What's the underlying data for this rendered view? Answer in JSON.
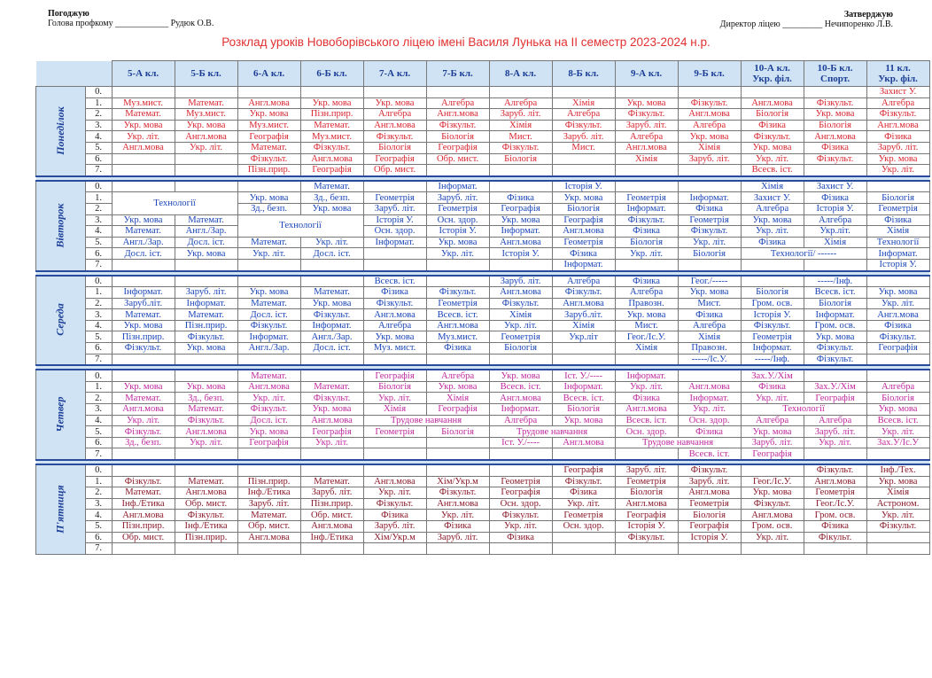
{
  "header": {
    "left_label": "Погоджую",
    "left_line": "Голова профкому ____________  Рудюк О.В.",
    "right_label": "Затверджую",
    "right_line": "Директор ліцею _________  Нечипоренко Л.В."
  },
  "title": "Розклад уроків Новоборівського ліцею імені Василя Лунька на ІІ семестр 2023-2024 н.р.",
  "classes": [
    "5-А кл.",
    "5-Б кл.",
    "6-А кл.",
    "6-Б кл.",
    "7-А кл.",
    "7-Б кл.",
    "8-А кл.",
    "8-Б кл.",
    "9-А кл.",
    "9-Б кл.",
    "10-А кл. Укр. філ.",
    "10-Б кл. Спорт.",
    "11 кл. Укр. філ."
  ],
  "days": [
    {
      "name": "Понеділок",
      "color": "#d8262f",
      "rows": [
        {
          "n": "0.",
          "cells": [
            "",
            "",
            "",
            "",
            "",
            "",
            "",
            "",
            "",
            "",
            "",
            "",
            "Захист У."
          ]
        },
        {
          "n": "1.",
          "cells": [
            "Муз.мист.",
            "Математ.",
            "Англ.мова",
            "Укр. мова",
            "Укр. мова",
            "Алгебра",
            "Алгебра",
            "Хімія",
            "Укр. мова",
            "Фізкульт.",
            "Англ.мова",
            "Фізкульт.",
            "Алгебра"
          ]
        },
        {
          "n": "2.",
          "cells": [
            "Математ.",
            "Муз.мист.",
            "Укр. мова",
            "Пізн.прир.",
            "Алгебра",
            "Англ.мова",
            "Заруб. літ.",
            "Алгебра",
            "Фізкульт.",
            "Англ.мова",
            "Біологія",
            "Укр. мова",
            "Фізкульт."
          ]
        },
        {
          "n": "3.",
          "cells": [
            "Укр. мова",
            "Укр. мова",
            "Муз.мист.",
            "Математ.",
            "Англ.мова",
            "Фізкульт.",
            "Хімія",
            "Фізкульт.",
            "Заруб. літ.",
            "Алгебра",
            "Фізика",
            "Біологія",
            "Англ.мова"
          ]
        },
        {
          "n": "4.",
          "cells": [
            "Укр. літ.",
            "Англ.мова",
            "Географія",
            "Муз.мист.",
            "Фізкульт.",
            "Біологія",
            "Мист.",
            "Заруб. літ.",
            "Алгебра",
            "Укр. мова",
            "Фізкульт.",
            "Англ.мова",
            "Фізика"
          ]
        },
        {
          "n": "5.",
          "cells": [
            "Англ.мова",
            "Укр. літ.",
            "Математ.",
            "Фізкульт.",
            "Біологія",
            "Географія",
            "Фізкульт.",
            "Мист.",
            "Англ.мова",
            "Хімія",
            "Укр. мова",
            "Фізика",
            "Заруб. літ."
          ]
        },
        {
          "n": "6.",
          "cells": [
            "",
            "",
            "Фізкульт.",
            "Англ.мова",
            "Географія",
            "Обр. мист.",
            "Біологія",
            "",
            "Хімія",
            "Заруб. літ.",
            "Укр. літ.",
            "Фізкульт.",
            "Укр. мова"
          ]
        },
        {
          "n": "7.",
          "cells": [
            "",
            "",
            "Пізн.прир.",
            "Географія",
            "Обр. мист.",
            "",
            "",
            "",
            "",
            "",
            "Всесв. іст.",
            "",
            "Укр. літ."
          ]
        }
      ]
    },
    {
      "name": "Вівторок",
      "color": "#1a46b8",
      "rows": [
        {
          "n": "0.",
          "cells": [
            "",
            "",
            "",
            "Математ.",
            "",
            "Інформат.",
            "",
            "Історія У.",
            "",
            "",
            "Хімія",
            "Захист У.",
            ""
          ]
        },
        {
          "n": "1.",
          "cells": [
            "",
            "",
            "Укр. мова",
            "Зд., безп.",
            "Геометрія",
            "Заруб. літ.",
            "Фізика",
            "Укр. мова",
            "Геометрія",
            "Інформат.",
            "Захист У.",
            "Фізика",
            "Біологія"
          ]
        },
        {
          "n": "2.",
          "cells": [
            "",
            "",
            "Зд., безп.",
            "Укр. мова",
            "Заруб. літ.",
            "Геометрія",
            "Географія",
            "Біологія",
            "Інформат.",
            "Фізика",
            "Алгебра",
            "Історія У.",
            "Геометрія"
          ]
        },
        {
          "n": "3.",
          "cells": [
            "Укр. мова",
            "Математ.",
            "",
            "",
            "Історія У.",
            "Осн. здор.",
            "Укр. мова",
            "Географія",
            "Фізкульт.",
            "Геометрія",
            "Укр. мова",
            "Алгебра",
            "Фізика"
          ]
        },
        {
          "n": "4.",
          "cells": [
            "Математ.",
            "Англ./Зар.",
            "",
            "",
            "Осн. здор.",
            "Історія У.",
            "Інформат.",
            "Англ.мова",
            "Фізика",
            "Фізкульт.",
            "Укр. літ.",
            "Укр.літ.",
            "Хімія"
          ]
        },
        {
          "n": "5.",
          "cells": [
            "Англ./Зар.",
            "Досл. іст.",
            "Математ.",
            "Укр. літ.",
            "Інформат.",
            "Укр. мова",
            "Англ.мова",
            "Геометрія",
            "Біологія",
            "Укр. літ.",
            "Фізика",
            "Хімія",
            "Технології"
          ]
        },
        {
          "n": "6.",
          "cells": [
            "Досл. іст.",
            "Укр. мова",
            "Укр. літ.",
            "Досл. іст.",
            "",
            "Укр. літ.",
            "Історія У.",
            "Фізика",
            "Укр. літ.",
            "Біологія",
            "",
            "",
            "Інформат."
          ]
        },
        {
          "n": "7.",
          "cells": [
            "",
            "",
            "",
            "",
            "",
            "",
            "",
            "Інформат.",
            "",
            "",
            "",
            "",
            "Історія У."
          ]
        }
      ],
      "merges": [
        {
          "row": 1,
          "col": 0,
          "span": 2,
          "rows": 2,
          "text": "Технології"
        },
        {
          "row": 3,
          "col": 2,
          "span": 2,
          "rows": 2,
          "text": "Технології"
        },
        {
          "row": 6,
          "col": 10,
          "span": 2,
          "rows": 1,
          "text": "Технології/ ------"
        }
      ]
    },
    {
      "name": "Середа",
      "color": "#1a46b8",
      "rows": [
        {
          "n": "0.",
          "cells": [
            "",
            "",
            "",
            "",
            "Всесв. іст.",
            "",
            "Заруб. літ.",
            "Алгебра",
            "Фізика",
            "Геог./-----",
            "",
            "-----/Інф.",
            ""
          ]
        },
        {
          "n": "1.",
          "cells": [
            "Інформат.",
            "Заруб. літ.",
            "Укр. мова",
            "Математ.",
            "Фізика",
            "Фізкульт.",
            "Англ.мова",
            "Фізкульт.",
            "Алгебра",
            "Укр. мова",
            "Біологія",
            "Всесв. іст.",
            "Укр. мова"
          ]
        },
        {
          "n": "2.",
          "cells": [
            "Заруб.літ.",
            "Інформат.",
            "Математ.",
            "Укр. мова",
            "Фізкульт.",
            "Геометрія",
            "Фізкульт.",
            "Англ.мова",
            "Правозн.",
            "Мист.",
            "Гром. осв.",
            "Біологія",
            "Укр. літ."
          ]
        },
        {
          "n": "3.",
          "cells": [
            "Математ.",
            "Математ.",
            "Досл. іст.",
            "Фізкульт.",
            "Англ.мова",
            "Всесв. іст.",
            "Хімія",
            "Заруб.літ.",
            "Укр. мова",
            "Фізика",
            "Історія У.",
            "Інформат.",
            "Англ.мова"
          ]
        },
        {
          "n": "4.",
          "cells": [
            "Укр. мова",
            "Пізн.прир.",
            "Фізкульт.",
            "Інформат.",
            "Алгебра",
            "Англ.мова",
            "Укр. літ.",
            "Хімія",
            "Мист.",
            "Алгебра",
            "Фізкульт.",
            "Гром. осв.",
            "Фізика"
          ]
        },
        {
          "n": "5.",
          "cells": [
            "Пізн.прир.",
            "Фізкульт.",
            "Інформат.",
            "Англ./Зар.",
            "Укр. мова",
            "Муз.мист.",
            "Геометрія",
            "Укр.літ",
            "Геог./Іс.У.",
            "Хімія",
            "Геометрія",
            "Укр. мова",
            "Фізкульт."
          ]
        },
        {
          "n": "6.",
          "cells": [
            "Фізкульт.",
            "Укр. мова",
            "Англ./Зар.",
            "Досл. іст.",
            "Муз. мист.",
            "Фізика",
            "Біологія",
            "",
            "Хімія",
            "Правозн.",
            "Інформат.",
            "Фізкульт.",
            "Географія"
          ]
        },
        {
          "n": "7.",
          "cells": [
            "",
            "",
            "",
            "",
            "",
            "",
            "",
            "",
            "",
            "-----/Іс.У.",
            "-----/Інф.",
            "Фізкульт.",
            ""
          ]
        }
      ]
    },
    {
      "name": "Четвер",
      "color": "#c02a9f",
      "rows": [
        {
          "n": "0.",
          "cells": [
            "",
            "",
            "Математ.",
            "",
            "Географія",
            "Алгебра",
            "Укр. мова",
            "Іст. У./----",
            "Інформат.",
            "",
            "Зах.У./Хім",
            "",
            ""
          ]
        },
        {
          "n": "1.",
          "cells": [
            "Укр. мова",
            "Укр. мова",
            "Англ.мова",
            "Математ.",
            "Біологія",
            "Укр. мова",
            "Всесв. іст.",
            "Інформат.",
            "Укр. літ.",
            "Англ.мова",
            "Фізика",
            "Зах.У./Хім",
            "Алгебра"
          ]
        },
        {
          "n": "2.",
          "cells": [
            "Математ.",
            "Зд., безп.",
            "Укр. літ.",
            "Фізкульт.",
            "Укр. літ.",
            "Хімія",
            "Англ.мова",
            "Всесв. іст.",
            "Фізика",
            "Інформат.",
            "Укр. літ.",
            "Географія",
            "Біологія"
          ]
        },
        {
          "n": "3.",
          "cells": [
            "Англ.мова",
            "Математ.",
            "Фізкульт.",
            "Укр. мова",
            "Хімія",
            "Географія",
            "Інформат.",
            "Біологія",
            "Англ.мова",
            "Укр. літ.",
            "",
            "",
            "Укр. мова"
          ]
        },
        {
          "n": "4.",
          "cells": [
            "Укр. літ.",
            "Фізкульт.",
            "Досл. іст.",
            "Англ.мова",
            "",
            "",
            "Алгебра",
            "Укр. мова",
            "Всесв. іст.",
            "Осн. здор.",
            "Алгебра",
            "Алгебра",
            "Всесв. іст."
          ]
        },
        {
          "n": "5.",
          "cells": [
            "Фізкульт.",
            "Англ.мова",
            "Укр. мова",
            "Географія",
            "Геометрія",
            "Біологія",
            "",
            "",
            "Осн. здор.",
            "Фізика",
            "Укр. мова",
            "Заруб. літ.",
            "Укр. літ."
          ]
        },
        {
          "n": "6.",
          "cells": [
            "Зд., безп.",
            "Укр. літ.",
            "Географія",
            "Укр. літ.",
            "",
            "",
            "Іст. У./----",
            "Англ.мова",
            "",
            "",
            "Заруб. літ.",
            "Укр. літ.",
            "Зах.У/Іс.У"
          ]
        },
        {
          "n": "7.",
          "cells": [
            "",
            "",
            "",
            "",
            "",
            "",
            "",
            "",
            "",
            "Всесв. іст.",
            "Географія",
            "",
            ""
          ]
        }
      ],
      "merges": [
        {
          "row": 3,
          "col": 10,
          "span": 2,
          "rows": 1,
          "text": "Технології"
        },
        {
          "row": 4,
          "col": 4,
          "span": 2,
          "rows": 1,
          "text": "Трудове навчання"
        },
        {
          "row": 5,
          "col": 6,
          "span": 2,
          "rows": 1,
          "text": "Трудове навчання"
        },
        {
          "row": 6,
          "col": 8,
          "span": 2,
          "rows": 1,
          "text": "Трудове навчання"
        }
      ]
    },
    {
      "name": "П'ятниця",
      "color": "#8b1a2a",
      "rows": [
        {
          "n": "0.",
          "cells": [
            "",
            "",
            "",
            "",
            "",
            "",
            "",
            "Географія",
            "Заруб. літ.",
            "Фізкульт.",
            "",
            "Фізкульт.",
            "Інф./Тех."
          ]
        },
        {
          "n": "1.",
          "cells": [
            "Фізкульт.",
            "Математ.",
            "Пізн.прир.",
            "Математ.",
            "Англ.мова",
            "Хім/Укр.м",
            "Геометрія",
            "Фізкульт.",
            "Геометрія",
            "Заруб. літ.",
            "Геог./Іс.У.",
            "Англ.мова",
            "Укр. мова"
          ]
        },
        {
          "n": "2.",
          "cells": [
            "Математ.",
            "Англ.мова",
            "Інф./Етика",
            "Заруб. літ.",
            "Укр. літ.",
            "Фізкульт.",
            "Географія",
            "Фізика",
            "Біологія",
            "Англ.мова",
            "Укр. мова",
            "Геометрія",
            "Хімія"
          ]
        },
        {
          "n": "3.",
          "cells": [
            "Інф./Етика",
            "Обр. мист.",
            "Заруб. літ.",
            "Пізн.прир.",
            "Фізкульт.",
            "Англ.мова",
            "Осн. здор.",
            "Укр. літ.",
            "Англ.мова",
            "Геометрія",
            "Фізкульт.",
            "Геог./Іс.У.",
            "Астроном."
          ]
        },
        {
          "n": "4.",
          "cells": [
            "Англ.мова",
            "Фізкульт.",
            "Математ.",
            "Обр. мист.",
            "Фізика",
            "Укр. літ.",
            "Фізкульт.",
            "Геометрія",
            "Географія",
            "Біологія",
            "Англ.мова",
            "Гром. осв.",
            "Укр. літ."
          ]
        },
        {
          "n": "5.",
          "cells": [
            "Пізн.прир.",
            "Інф./Етика",
            "Обр. мист.",
            "Англ.мова",
            "Заруб. літ.",
            "Фізика",
            "Укр. літ.",
            "Осн. здор.",
            "Історія У.",
            "Географія",
            "Гром. осв.",
            "Фізика",
            "Фізкульт."
          ]
        },
        {
          "n": "6.",
          "cells": [
            "Обр. мист.",
            "Пізн.прир.",
            "Англ.мова",
            "Інф./Етика",
            "Хім/Укр.м",
            "Заруб. літ.",
            "Фізика",
            "",
            "Фізкульт.",
            "Історія У.",
            "Укр. літ.",
            "Фікульт.",
            ""
          ]
        },
        {
          "n": "7.",
          "cells": [
            "",
            "",
            "",
            "",
            "",
            "",
            "",
            "",
            "",
            "",
            "",
            "",
            ""
          ]
        }
      ]
    }
  ]
}
